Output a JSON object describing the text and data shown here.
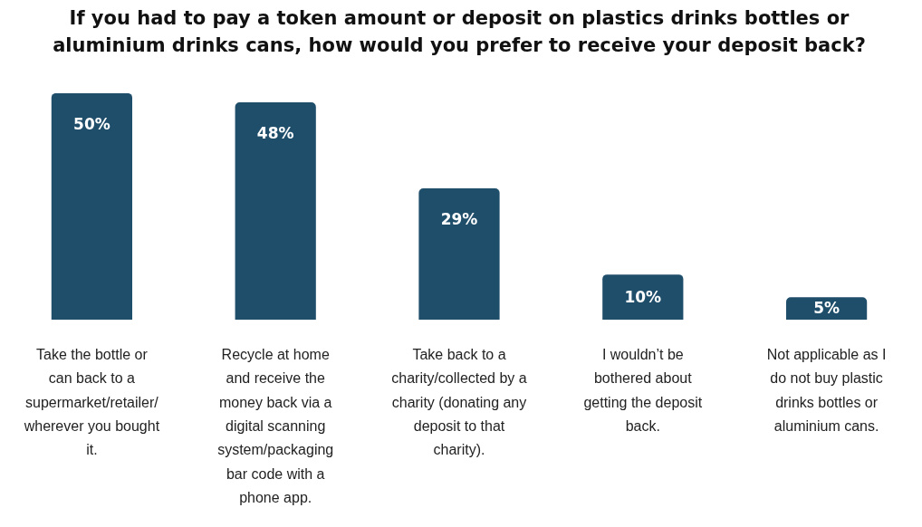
{
  "chart_data": {
    "type": "bar",
    "title": "If you had to pay a token amount or deposit on plastics drinks bottles or aluminium drinks cans, how would you prefer to receive your deposit back?",
    "categories": [
      "Take the bottle or can back to a supermarket/retailer/wherever you bought it.",
      "Recycle at home and receive the money back via a digital scanning system/packaging bar code with a phone app.",
      "Take back to a charity/collected by a charity (donating any deposit to that charity).",
      "I wouldn’t be bothered about getting the deposit back.",
      "Not applicable as I do not buy plastic drinks bottles or aluminium cans."
    ],
    "values": [
      50,
      48,
      29,
      10,
      5
    ],
    "value_labels": [
      "50%",
      "48%",
      "29%",
      "10%",
      "5%"
    ],
    "color": "#1f4e6b"
  }
}
